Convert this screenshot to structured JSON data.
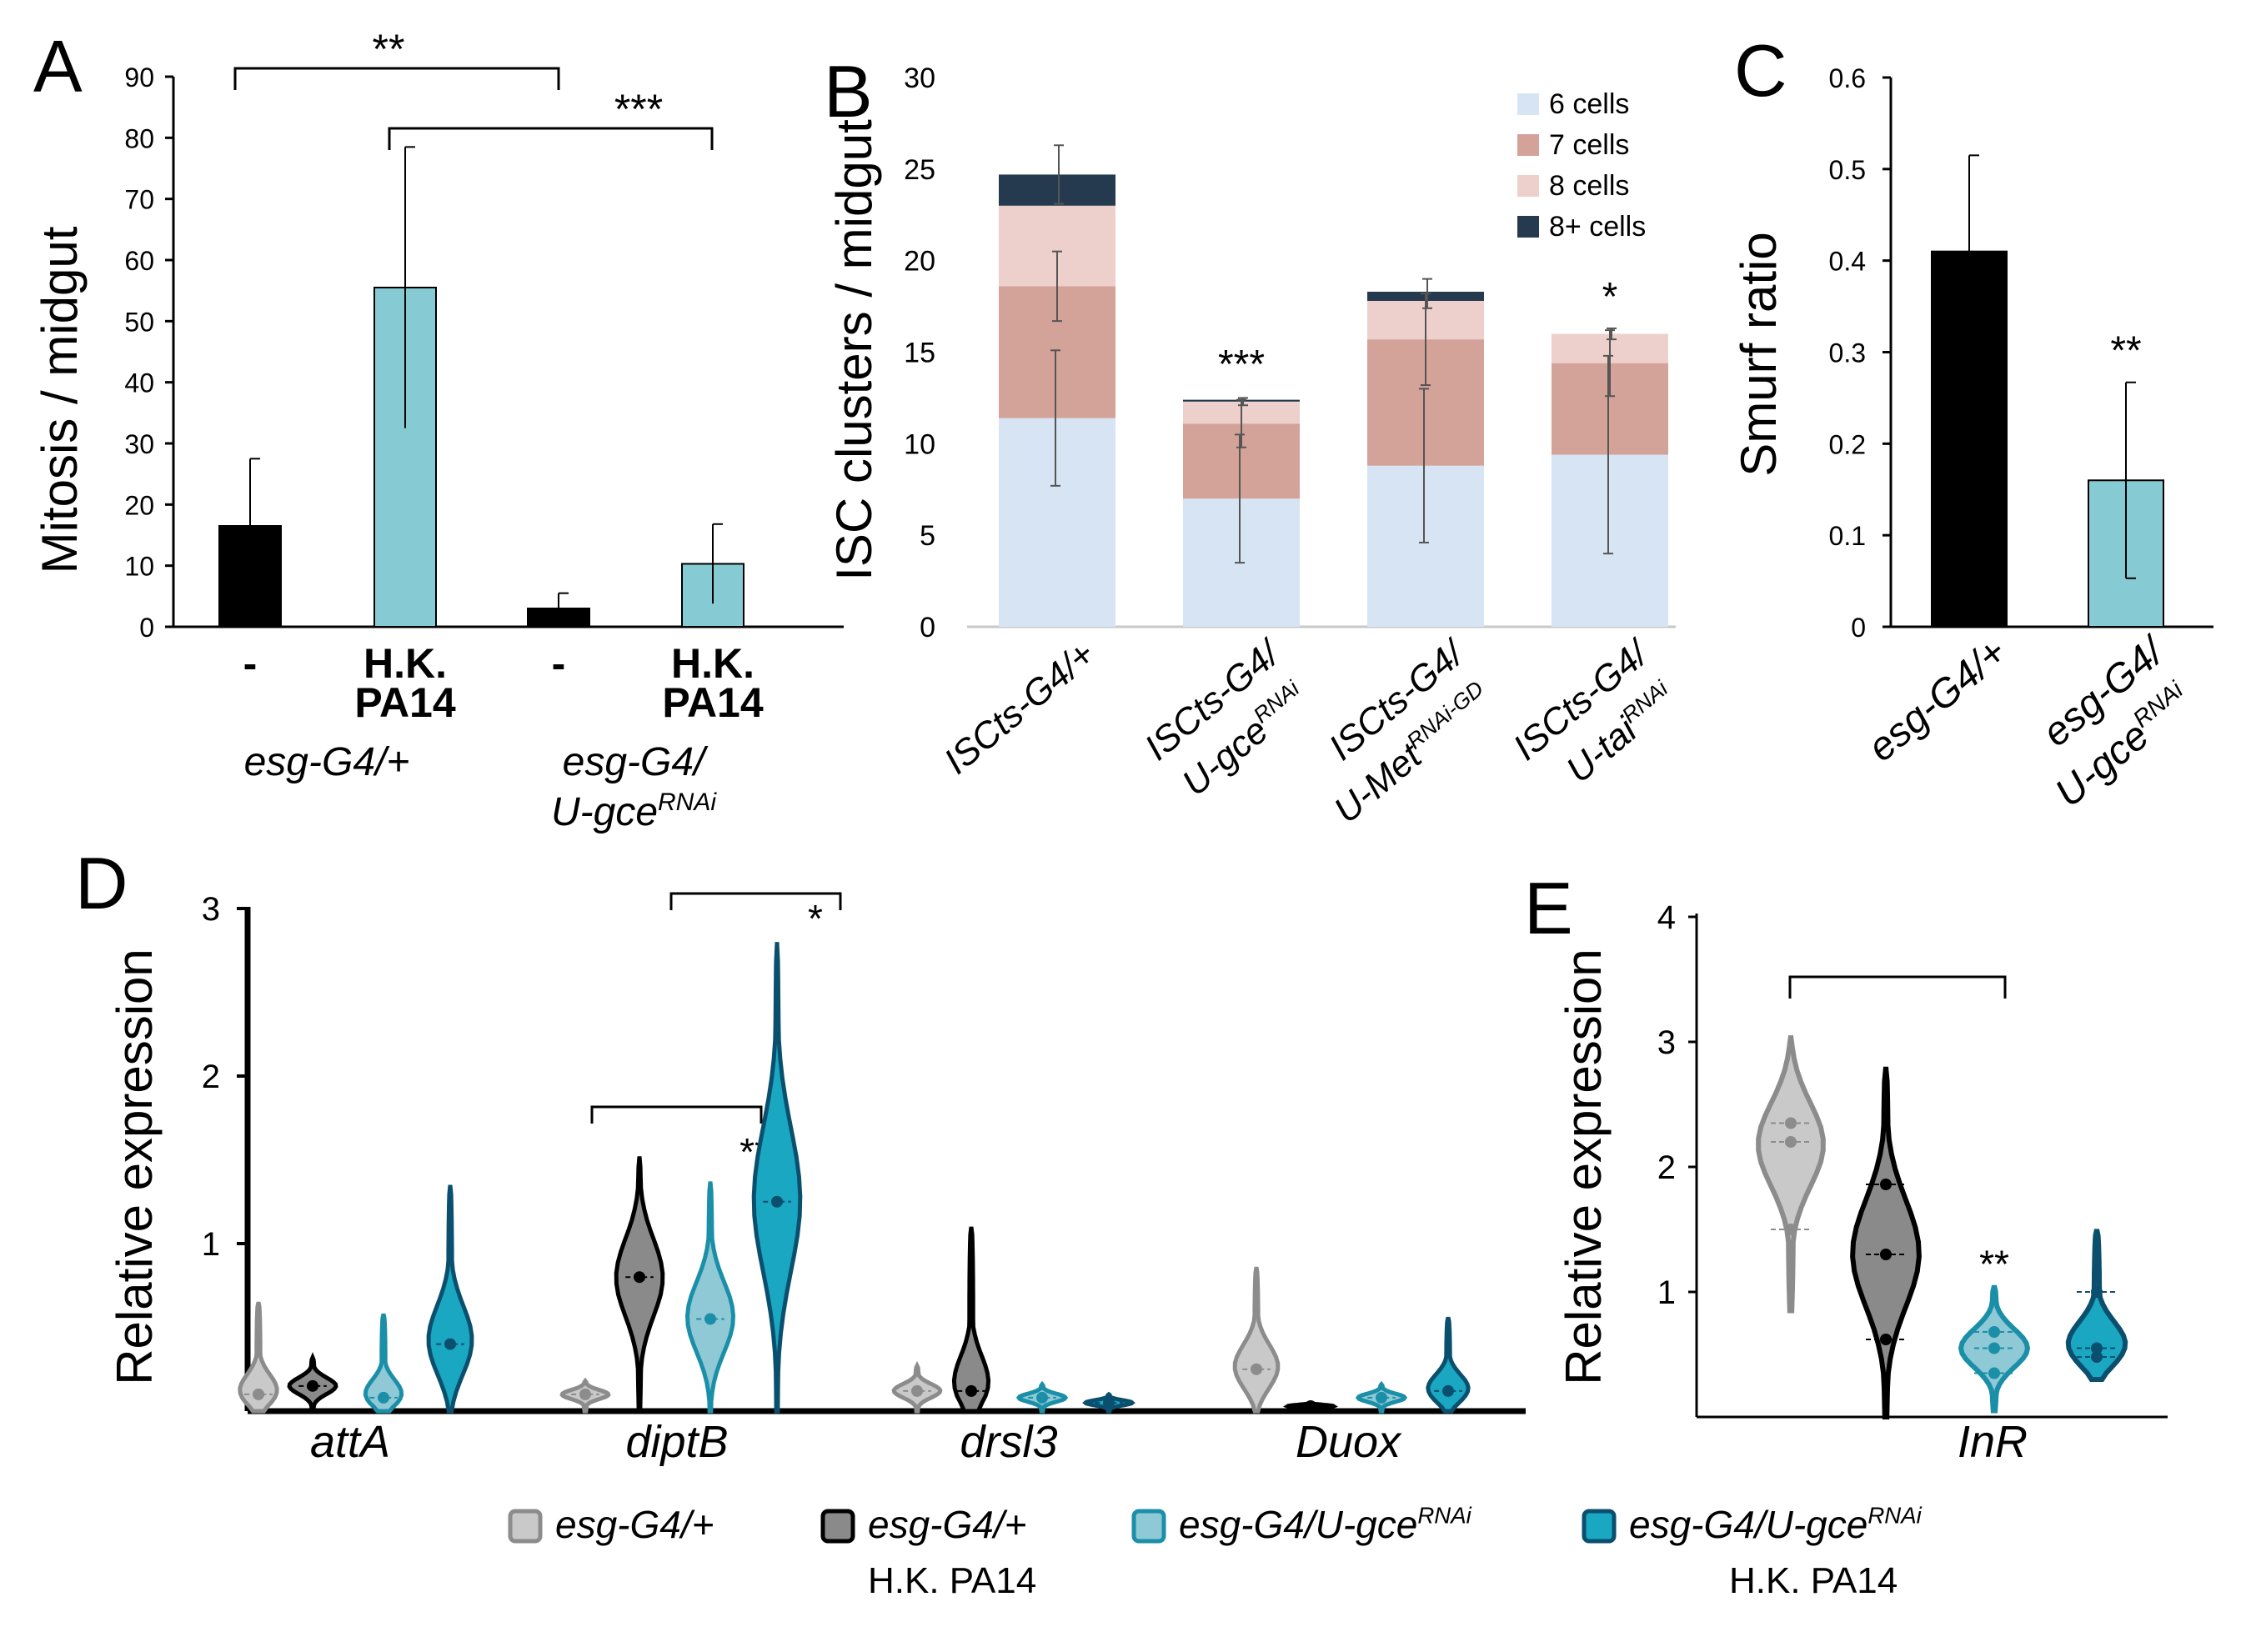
{
  "panel_letters": {
    "a": "A",
    "b": "B",
    "c": "C",
    "d": "D",
    "e": "E"
  },
  "chart_data": [
    {
      "panel": "A",
      "type": "bar",
      "ylabel": "Mitosis / midgut",
      "ylim": [
        0,
        90
      ],
      "yticks": [
        "0",
        "10",
        "20",
        "30",
        "40",
        "50",
        "60",
        "70",
        "80",
        "90"
      ],
      "categories": [
        "-",
        "H.K.",
        "-",
        "H.K."
      ],
      "category_line2": [
        "",
        "PA14",
        "",
        "PA14"
      ],
      "values": [
        16.5,
        55.5,
        3.0,
        10.3
      ],
      "errors": [
        11,
        23,
        2.5,
        6.5
      ],
      "colors": [
        "#000000",
        "#86cbd3",
        "#000000",
        "#86cbd3"
      ],
      "group_labels": [
        "esg-G4/+",
        "esg-G4/"
      ],
      "group_label_line2": {
        "base": "U-gce",
        "sup": "RNAi"
      },
      "significance": [
        {
          "text": "**"
        },
        {
          "text": "***"
        }
      ]
    },
    {
      "panel": "B",
      "type": "bar",
      "stacked": true,
      "ylabel": "ISC clusters / midgut",
      "ylim": [
        0,
        30
      ],
      "yticks": [
        "0",
        "5",
        "10",
        "15",
        "20",
        "25",
        "30"
      ],
      "legend_position": "top-right",
      "categories": [
        {
          "line1": "ISCts-G4/+",
          "base": "",
          "sup": ""
        },
        {
          "line1": "ISCts-G4/",
          "base": "U-gce",
          "sup": "RNAi"
        },
        {
          "line1": "ISCts-G4/",
          "base": "U-Met",
          "sup": "RNAi-GD"
        },
        {
          "line1": "ISCts-G4/",
          "base": "U-tai",
          "sup": "RNAi"
        }
      ],
      "series": [
        {
          "name": "6 cells",
          "color": "#d6e4f4",
          "values": [
            11.4,
            7.0,
            8.8,
            9.4
          ]
        },
        {
          "name": "7 cells",
          "color": "#d3a298",
          "values": [
            7.2,
            4.1,
            6.9,
            5.0
          ]
        },
        {
          "name": "8 cells",
          "color": "#edcfcb",
          "values": [
            4.4,
            1.2,
            2.1,
            1.6
          ]
        },
        {
          "name": "8+ cells",
          "color": "#263a4f",
          "values": [
            1.7,
            0.1,
            0.5,
            0.0
          ]
        }
      ],
      "errors": [
        {
          "top": 24.7,
          "top_err": 1.6,
          "mid": 18.6,
          "mid_err": 1.9,
          "low": 11.4,
          "low_err": 3.7
        },
        {
          "top": 12.3,
          "top_err": 0.2,
          "mid": 11.1,
          "mid_err": 1.3,
          "low": 7.0,
          "low_err": 3.5
        },
        {
          "top": 18.2,
          "top_err": 0.8,
          "mid": 15.7,
          "mid_err": 2.5,
          "low": 8.8,
          "low_err": 4.2
        },
        {
          "top": 16.0,
          "top_err": 0.3,
          "mid": 14.4,
          "mid_err": 1.8,
          "low": 9.4,
          "low_err": 5.4
        }
      ],
      "significance": [
        "",
        "***",
        "",
        "*"
      ]
    },
    {
      "panel": "C",
      "type": "bar",
      "ylabel": "Smurf ratio",
      "ylim": [
        0,
        0.6
      ],
      "yticks": [
        "0",
        "0.1",
        "0.2",
        "0.3",
        "0.4",
        "0.5",
        "0.6"
      ],
      "categories": [
        {
          "line1": "esg-G4/+",
          "base": "",
          "sup": ""
        },
        {
          "line1": "esg-G4/",
          "base": "U-gce",
          "sup": "RNAi"
        }
      ],
      "values": [
        0.41,
        0.16
      ],
      "errors": [
        0.105,
        0.107
      ],
      "colors": [
        "#000000",
        "#86cbd3"
      ],
      "significance": [
        "",
        "**"
      ]
    },
    {
      "panel": "D",
      "type": "violin",
      "ylabel": "Relative expression",
      "ylim": [
        0,
        3
      ],
      "yticks": [
        "1",
        "2",
        "3"
      ],
      "genes": [
        "attA",
        "diptB",
        "drsl3",
        "Duox"
      ],
      "conditions": [
        "esg-G4/+",
        "esg-G4/+ H.K. PA14",
        "esg-G4/U-gceRNAi",
        "esg-G4/U-gceRNAi H.K. PA14"
      ],
      "distributions": [
        [
          {
            "min": 0,
            "max": 0.65,
            "median": 0.1
          },
          {
            "min": 0,
            "max": 0.32,
            "median": 0.15
          },
          {
            "min": 0,
            "max": 0.58,
            "median": 0.08
          },
          {
            "min": 0,
            "max": 1.35,
            "median": 0.4
          }
        ],
        [
          {
            "min": 0,
            "max": 0.18,
            "median": 0.1
          },
          {
            "min": 0,
            "max": 1.52,
            "median": 0.8
          },
          {
            "min": 0,
            "max": 1.37,
            "median": 0.55
          },
          {
            "min": 0,
            "max": 2.8,
            "median": 1.25
          }
        ],
        [
          {
            "min": 0,
            "max": 0.27,
            "median": 0.12
          },
          {
            "min": 0,
            "max": 1.1,
            "median": 0.12
          },
          {
            "min": 0,
            "max": 0.16,
            "median": 0.08
          },
          {
            "min": 0,
            "max": 0.1,
            "median": 0.05
          }
        ],
        [
          {
            "min": 0,
            "max": 0.86,
            "median": 0.25
          },
          {
            "min": 0,
            "max": 0.05,
            "median": 0.03
          },
          {
            "min": 0,
            "max": 0.16,
            "median": 0.08
          },
          {
            "min": 0,
            "max": 0.56,
            "median": 0.12
          }
        ]
      ],
      "significance": [
        {
          "text": "**"
        },
        {
          "text": "*"
        }
      ]
    },
    {
      "panel": "E",
      "type": "violin",
      "ylabel": "Relative expression",
      "ylim": [
        0,
        4
      ],
      "yticks": [
        "1",
        "2",
        "3",
        "4"
      ],
      "gene": "InR",
      "distributions": [
        {
          "min": 0.85,
          "max": 3.05,
          "median": 2.2,
          "q1": 1.5,
          "q3": 2.35
        },
        {
          "min": 0,
          "max": 2.8,
          "median": 1.3,
          "q1": 0.62,
          "q3": 1.86
        },
        {
          "min": 0.05,
          "max": 1.05,
          "median": 0.55,
          "q1": 0.35,
          "q3": 0.68
        },
        {
          "min": 0.3,
          "max": 1.5,
          "median": 0.55,
          "q1": 0.48,
          "q3": 1.0
        }
      ],
      "significance": [
        "",
        "",
        "**",
        ""
      ]
    }
  ],
  "legend": [
    {
      "line1": "esg-G4/+",
      "line2": "",
      "base": "",
      "sup": ""
    },
    {
      "line1": "esg-G4/+",
      "line2": "H.K. PA14",
      "base": "",
      "sup": ""
    },
    {
      "line1": "",
      "line2": "",
      "base": "esg-G4/U-gce",
      "sup": "RNAi"
    },
    {
      "line1": "",
      "line2": "H.K. PA14",
      "base": "esg-G4/U-gce",
      "sup": "RNAi"
    }
  ],
  "violin_colors": {
    "fill": [
      "#c9c9c9",
      "#8a8a8a",
      "#8fc9d6",
      "#1aa7c1"
    ],
    "stroke": [
      "#8c8c8c",
      "#000000",
      "#1b8fa8",
      "#0b4f6e"
    ]
  }
}
